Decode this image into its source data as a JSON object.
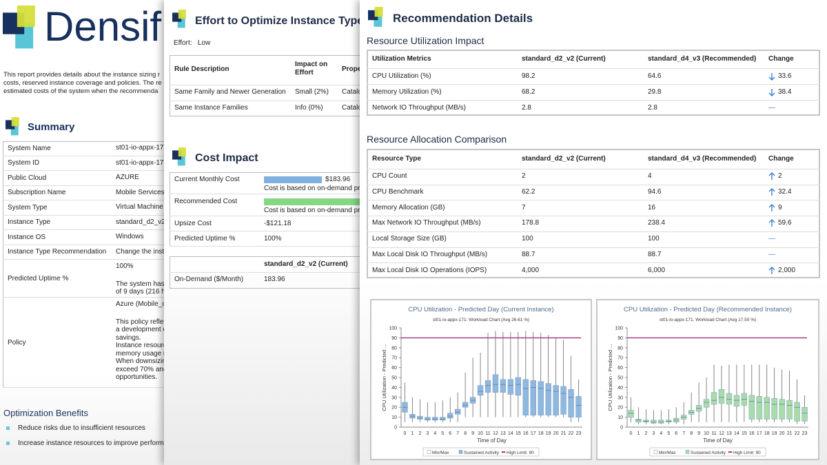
{
  "report": {
    "logo_text": "Densif",
    "intro_lines": [
      "This report provides details about the instance sizing r",
      "costs, reserved instance coverage and policies.  The re",
      "estimated costs of the system when the recommenda"
    ],
    "summary_title": "Summary",
    "summary_rows": [
      {
        "label": "System Name",
        "lines": [
          "st01-io-appx-17"
        ]
      },
      {
        "label": "System ID",
        "lines": [
          "st01-io-appx-17"
        ]
      },
      {
        "label": "Public Cloud",
        "lines": [
          "AZURE"
        ]
      },
      {
        "label": "Subscription Name",
        "lines": [
          "Mobile Services"
        ]
      },
      {
        "label": "System Type",
        "lines": [
          "Virtual Machine"
        ]
      },
      {
        "label": "Instance Type",
        "lines": [
          "standard_d2_v2"
        ]
      },
      {
        "label": "Instance OS",
        "lines": [
          "Windows"
        ]
      },
      {
        "label": "Instance Type Recommendation",
        "lines": [
          "Change the insta"
        ]
      },
      {
        "label": "Predicted Uptime %",
        "lines": [
          "100%",
          "The system has l",
          "of 9 days (216 h"
        ]
      },
      {
        "label": "Policy",
        "lines": [
          "Azure (Mobile_c",
          "This policy reflec",
          "a development e",
          "savings.",
          "Instance resourc",
          "memory usage r",
          "When downsizin",
          "exceed 70% and",
          "opportunities."
        ]
      }
    ],
    "benefits_title": "Optimization Benefits",
    "benefits": [
      "Reduce risks due to insufficient resources",
      "Increase instance resources to improve performa"
    ]
  },
  "effort": {
    "title": "Effort to Optimize Instance Type",
    "effort_line": "Effort:   Low",
    "header": [
      "Rule Description",
      "Impact on Effort",
      "Prope"
    ],
    "rows": [
      [
        "Same Family and Newer Generation",
        "Small (2%)",
        "Catalo"
      ],
      [
        "Same Instance Families",
        "Info (0%)",
        "Catalo"
      ]
    ]
  },
  "cost_impact": {
    "title": "Cost Impact",
    "bar_colors": [
      "#7fb0e0",
      "#84d884"
    ],
    "rows": [
      {
        "label": "Current Monthly Cost",
        "bar_value": 183.96,
        "amount": "$183.96",
        "note": "Cost is based on on-demand pr"
      },
      {
        "label": "Recommended Cost",
        "bar_value": 305.14,
        "note": "Cost is based on on-demand pr"
      },
      {
        "label": "Upsize Cost",
        "amount": "-$121.18"
      },
      {
        "label": "Predicted Uptime %",
        "amount": "100%"
      }
    ],
    "ondemand_header": "standard_d2_v2 (Current)",
    "ondemand_row": [
      "On-Demand ($/Month)",
      "183.96"
    ]
  },
  "details": {
    "title": "Recommendation Details",
    "utilization": {
      "title": "Resource Utilization Impact",
      "header": [
        "Utilization Metrics",
        "standard_d2_v2 (Current)",
        "standard_d4_v3 (Recommended)",
        "Change"
      ],
      "rows": [
        [
          "CPU Utilization (%)",
          "98.2",
          "64.6",
          "33.6"
        ],
        [
          "Memory Utilization (%)",
          "68.2",
          "29.8",
          "38.4"
        ],
        [
          "Network IO Throughput (MB/s)",
          "2.8",
          "2.8",
          "—"
        ]
      ],
      "change_directions": [
        "down",
        "down",
        null
      ]
    },
    "allocation": {
      "title": "Resource Allocation Comparison",
      "header": [
        "Resource Type",
        "standard_d2_v2 (Current)",
        "standard_d4_v3 (Recommended)",
        "Change"
      ],
      "rows": [
        [
          "CPU Count",
          "2",
          "4",
          "2"
        ],
        [
          "CPU Benchmark",
          "62.2",
          "94.6",
          "32.4"
        ],
        [
          "Memory Allocation (GB)",
          "7",
          "16",
          "9"
        ],
        [
          "Max Network IO Throughput (MB/s)",
          "178.8",
          "238.4",
          "59.6"
        ],
        [
          "Local Storage Size (GB)",
          "100",
          "100",
          "—"
        ],
        [
          "Max Local Disk IO Throughput (MB/s)",
          "88.7",
          "88.7",
          "—"
        ],
        [
          "Max Local Disk IO Operations (IOPS)",
          "4,000",
          "6,000",
          "2,000"
        ]
      ],
      "change_directions": [
        "up",
        "up",
        "up",
        "up",
        null,
        null,
        "up"
      ]
    }
  },
  "chart_data": [
    {
      "type": "box",
      "title": "CPU Utilization - Predicted Day (Current Instance)",
      "subtitle": "st01-io-appx-171: Workload Chart (Avg 26.61 %)",
      "y_label": "CPU Utilization - Predicted ...",
      "x_label": "Time of Day",
      "categories": [
        "0",
        "1",
        "2",
        "3",
        "4",
        "5",
        "6",
        "7",
        "8",
        "9",
        "10",
        "11",
        "12",
        "13",
        "14",
        "15",
        "16",
        "17",
        "18",
        "19",
        "20",
        "21",
        "22",
        "23"
      ],
      "min": [
        5,
        5,
        5,
        5,
        5,
        5,
        5,
        5,
        10,
        10,
        10,
        10,
        10,
        10,
        10,
        10,
        10,
        10,
        10,
        10,
        10,
        10,
        5,
        5
      ],
      "q1": [
        15,
        9,
        8,
        7,
        7,
        7,
        9,
        13,
        20,
        24,
        32,
        35,
        35,
        35,
        33,
        32,
        12,
        12,
        12,
        12,
        12,
        13,
        10,
        10
      ],
      "median": [
        20,
        11,
        9,
        8,
        8,
        8,
        11,
        15,
        22,
        27,
        36,
        42,
        43,
        43,
        42,
        43,
        39,
        40,
        39,
        37,
        36,
        34,
        30,
        22
      ],
      "q3": [
        25,
        13,
        11,
        10,
        10,
        10,
        14,
        18,
        25,
        30,
        42,
        47,
        53,
        48,
        48,
        50,
        48,
        47,
        46,
        44,
        42,
        41,
        38,
        31
      ],
      "max": [
        45,
        30,
        28,
        25,
        25,
        27,
        30,
        35,
        55,
        70,
        75,
        95,
        97,
        96,
        96,
        96,
        97,
        96,
        95,
        93,
        90,
        88,
        72,
        48
      ],
      "color": "#8fb8e0",
      "limit": 90,
      "limit_color": "#a3307e",
      "legend": [
        "Min/Max",
        "Sustained Activity",
        "High Limit: 90"
      ],
      "ylim": [
        0,
        100
      ],
      "yticks": [
        0,
        10,
        20,
        30,
        40,
        50,
        60,
        70,
        80,
        90,
        100
      ]
    },
    {
      "type": "box",
      "title": "CPU Utilization - Predicted Day (Recommended Instance)",
      "subtitle": "st01-io-appx-171: Workload Chart (Avg 17.50 %)",
      "y_label": "CPU Utilization - Predicted ...",
      "x_label": "Time of Day",
      "categories": [
        "0",
        "1",
        "2",
        "3",
        "4",
        "5",
        "6",
        "7",
        "8",
        "9",
        "10",
        "11",
        "12",
        "13",
        "14",
        "15",
        "16",
        "17",
        "18",
        "19",
        "20",
        "21",
        "22",
        "23"
      ],
      "min": [
        5,
        3,
        3,
        3,
        3,
        3,
        3,
        3,
        5,
        5,
        5,
        5,
        5,
        5,
        5,
        5,
        5,
        5,
        5,
        5,
        5,
        5,
        3,
        3
      ],
      "q1": [
        10,
        5,
        5,
        4,
        4,
        5,
        5,
        8,
        13,
        16,
        20,
        23,
        24,
        23,
        21,
        22,
        8,
        8,
        8,
        8,
        8,
        8,
        6,
        6
      ],
      "median": [
        14,
        7,
        6,
        5,
        5,
        6,
        7,
        10,
        15,
        19,
        25,
        27,
        30,
        28,
        27,
        28,
        26,
        25,
        25,
        23,
        23,
        22,
        20,
        14
      ],
      "q3": [
        17,
        8,
        7,
        7,
        7,
        7,
        9,
        12,
        17,
        22,
        28,
        35,
        38,
        34,
        32,
        34,
        32,
        31,
        30,
        29,
        28,
        27,
        25,
        20
      ],
      "max": [
        30,
        20,
        18,
        17,
        17,
        18,
        20,
        25,
        35,
        45,
        50,
        63,
        62,
        63,
        63,
        63,
        63,
        63,
        63,
        60,
        58,
        57,
        48,
        32
      ],
      "color": "#a9dca9",
      "limit": 90,
      "limit_color": "#a3307e",
      "legend": [
        "Min/Max",
        "Sustained Activity",
        "High Limit: 90"
      ],
      "ylim": [
        0,
        100
      ],
      "yticks": [
        0,
        10,
        20,
        30,
        40,
        50,
        60,
        70,
        80,
        90,
        100
      ]
    }
  ]
}
